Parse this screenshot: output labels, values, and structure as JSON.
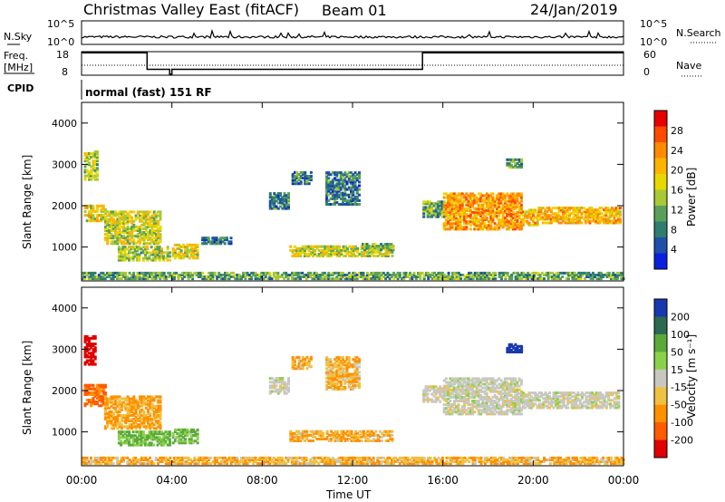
{
  "header": {
    "station": "Christmas Valley East (fitACF)",
    "beam": "Beam 01",
    "date": "24/Jan/2019"
  },
  "nsky_panel": {
    "left_label": "N.Sky",
    "right_label": "N.Search",
    "left_ticks": [
      "10^5",
      "10^0"
    ],
    "right_ticks": [
      "10^5",
      "10^0"
    ]
  },
  "freq_panel": {
    "left_label_1": "Freq.",
    "left_label_2": "[MHz]",
    "right_label": "Nave",
    "left_ticks": [
      "18",
      "8"
    ],
    "right_ticks": [
      "60",
      "0"
    ]
  },
  "cpid": {
    "label": "CPID",
    "value": "normal (fast) 151 RF"
  },
  "colorbar_power": {
    "title": "Power [dB]",
    "ticks": [
      "28",
      "24",
      "20",
      "16",
      "12",
      "8",
      "4"
    ],
    "colors": [
      "#e60000",
      "#ff4a00",
      "#ff8a00",
      "#ffb400",
      "#e7d800",
      "#a8c836",
      "#5aa05a",
      "#2e7d6e",
      "#1f4fa8",
      "#0b1fe0"
    ]
  },
  "colorbar_velocity": {
    "title": "Velocity [m s⁻¹]",
    "ticks": [
      "200",
      "100",
      "50",
      "15",
      "-15",
      "-50",
      "-100",
      "-200"
    ],
    "colors": [
      "#1838b0",
      "#2a6a50",
      "#5aaa3a",
      "#8ad24a",
      "#c8c8c0",
      "#f0c040",
      "#ff9000",
      "#ff5a00",
      "#e00000"
    ]
  },
  "chart_data": {
    "type": "heatmap",
    "xlabel": "Time UT",
    "ylabel": "Slant Range [km]",
    "x_ticks": [
      "00:00",
      "04:00",
      "08:00",
      "12:00",
      "16:00",
      "20:00",
      "00:00"
    ],
    "xlim_hours": [
      0,
      24
    ],
    "y_ticks": [
      "4000",
      "3000",
      "2000",
      "1000"
    ],
    "ylim_km": [
      180,
      4500
    ],
    "freq_mhz_segments": [
      {
        "start_h": 0,
        "end_h": 2.9,
        "value": 17.5
      },
      {
        "start_h": 2.9,
        "end_h": 3.9,
        "value": 10.5
      },
      {
        "start_h": 3.9,
        "end_h": 4.0,
        "value": 8.5
      },
      {
        "start_h": 4.0,
        "end_h": 15.1,
        "value": 10.5
      },
      {
        "start_h": 15.1,
        "end_h": 24,
        "value": 17.5
      }
    ],
    "power_regions": [
      {
        "t0": 0.1,
        "t1": 0.7,
        "r0": 2600,
        "r1": 3300,
        "level": 0.45
      },
      {
        "t0": 0.1,
        "t1": 1.0,
        "r0": 1600,
        "r1": 2000,
        "level": 0.55
      },
      {
        "t0": 1.0,
        "t1": 3.5,
        "r0": 1050,
        "r1": 1850,
        "level": 0.5
      },
      {
        "t0": 1.6,
        "t1": 3.9,
        "r0": 650,
        "r1": 1000,
        "level": 0.45
      },
      {
        "t0": 4.0,
        "t1": 5.1,
        "r0": 700,
        "r1": 1050,
        "level": 0.55
      },
      {
        "t0": 5.3,
        "t1": 6.6,
        "r0": 1050,
        "r1": 1200,
        "level": 0.2
      },
      {
        "t0": 8.3,
        "t1": 9.2,
        "r0": 1900,
        "r1": 2300,
        "level": 0.25
      },
      {
        "t0": 9.3,
        "t1": 10.2,
        "r0": 2500,
        "r1": 2800,
        "level": 0.25
      },
      {
        "t0": 10.8,
        "t1": 12.3,
        "r0": 2000,
        "r1": 2800,
        "level": 0.25
      },
      {
        "t0": 9.2,
        "t1": 13.7,
        "r0": 750,
        "r1": 1000,
        "level": 0.5
      },
      {
        "t0": 12.4,
        "t1": 13.8,
        "r0": 900,
        "r1": 1050,
        "level": 0.4
      },
      {
        "t0": 15.1,
        "t1": 16.0,
        "r0": 1700,
        "r1": 2100,
        "level": 0.35
      },
      {
        "t0": 16.0,
        "t1": 19.5,
        "r0": 1400,
        "r1": 2300,
        "level": 0.7
      },
      {
        "t0": 19.5,
        "t1": 20.2,
        "r0": 1500,
        "r1": 1900,
        "level": 0.65
      },
      {
        "t0": 20.2,
        "t1": 23.8,
        "r0": 1550,
        "r1": 1950,
        "level": 0.65
      },
      {
        "t0": 18.8,
        "t1": 19.5,
        "r0": 2900,
        "r1": 3100,
        "level": 0.35
      },
      {
        "t0": 0,
        "t1": 24,
        "r0": 200,
        "r1": 350,
        "level": 0.35
      }
    ],
    "velocity_regions": [
      {
        "t0": 0.1,
        "t1": 0.6,
        "r0": 2600,
        "r1": 3300,
        "v": -250
      },
      {
        "t0": 0.1,
        "t1": 1.0,
        "r0": 1600,
        "r1": 2100,
        "v": -80
      },
      {
        "t0": 1.0,
        "t1": 3.5,
        "r0": 1050,
        "r1": 1850,
        "v": -35
      },
      {
        "t0": 1.6,
        "t1": 3.9,
        "r0": 650,
        "r1": 1000,
        "v": 35
      },
      {
        "t0": 4.0,
        "t1": 5.1,
        "r0": 700,
        "r1": 1050,
        "v": 30
      },
      {
        "t0": 8.3,
        "t1": 9.2,
        "r0": 1900,
        "r1": 2300,
        "v": 0
      },
      {
        "t0": 9.3,
        "t1": 10.2,
        "r0": 2500,
        "r1": 2800,
        "v": -30
      },
      {
        "t0": 10.8,
        "t1": 12.3,
        "r0": 2000,
        "r1": 2800,
        "v": -30
      },
      {
        "t0": 9.2,
        "t1": 13.7,
        "r0": 750,
        "r1": 1000,
        "v": -30
      },
      {
        "t0": 15.1,
        "t1": 16.0,
        "r0": 1700,
        "r1": 2100,
        "v": 0
      },
      {
        "t0": 16.0,
        "t1": 19.5,
        "r0": 1400,
        "r1": 2300,
        "v": 0
      },
      {
        "t0": 19.5,
        "t1": 23.8,
        "r0": 1550,
        "r1": 1950,
        "v": 0
      },
      {
        "t0": 18.8,
        "t1": 19.5,
        "r0": 2900,
        "r1": 3100,
        "v": 220
      },
      {
        "t0": 0,
        "t1": 24,
        "r0": 200,
        "r1": 350,
        "v": -30
      }
    ]
  }
}
